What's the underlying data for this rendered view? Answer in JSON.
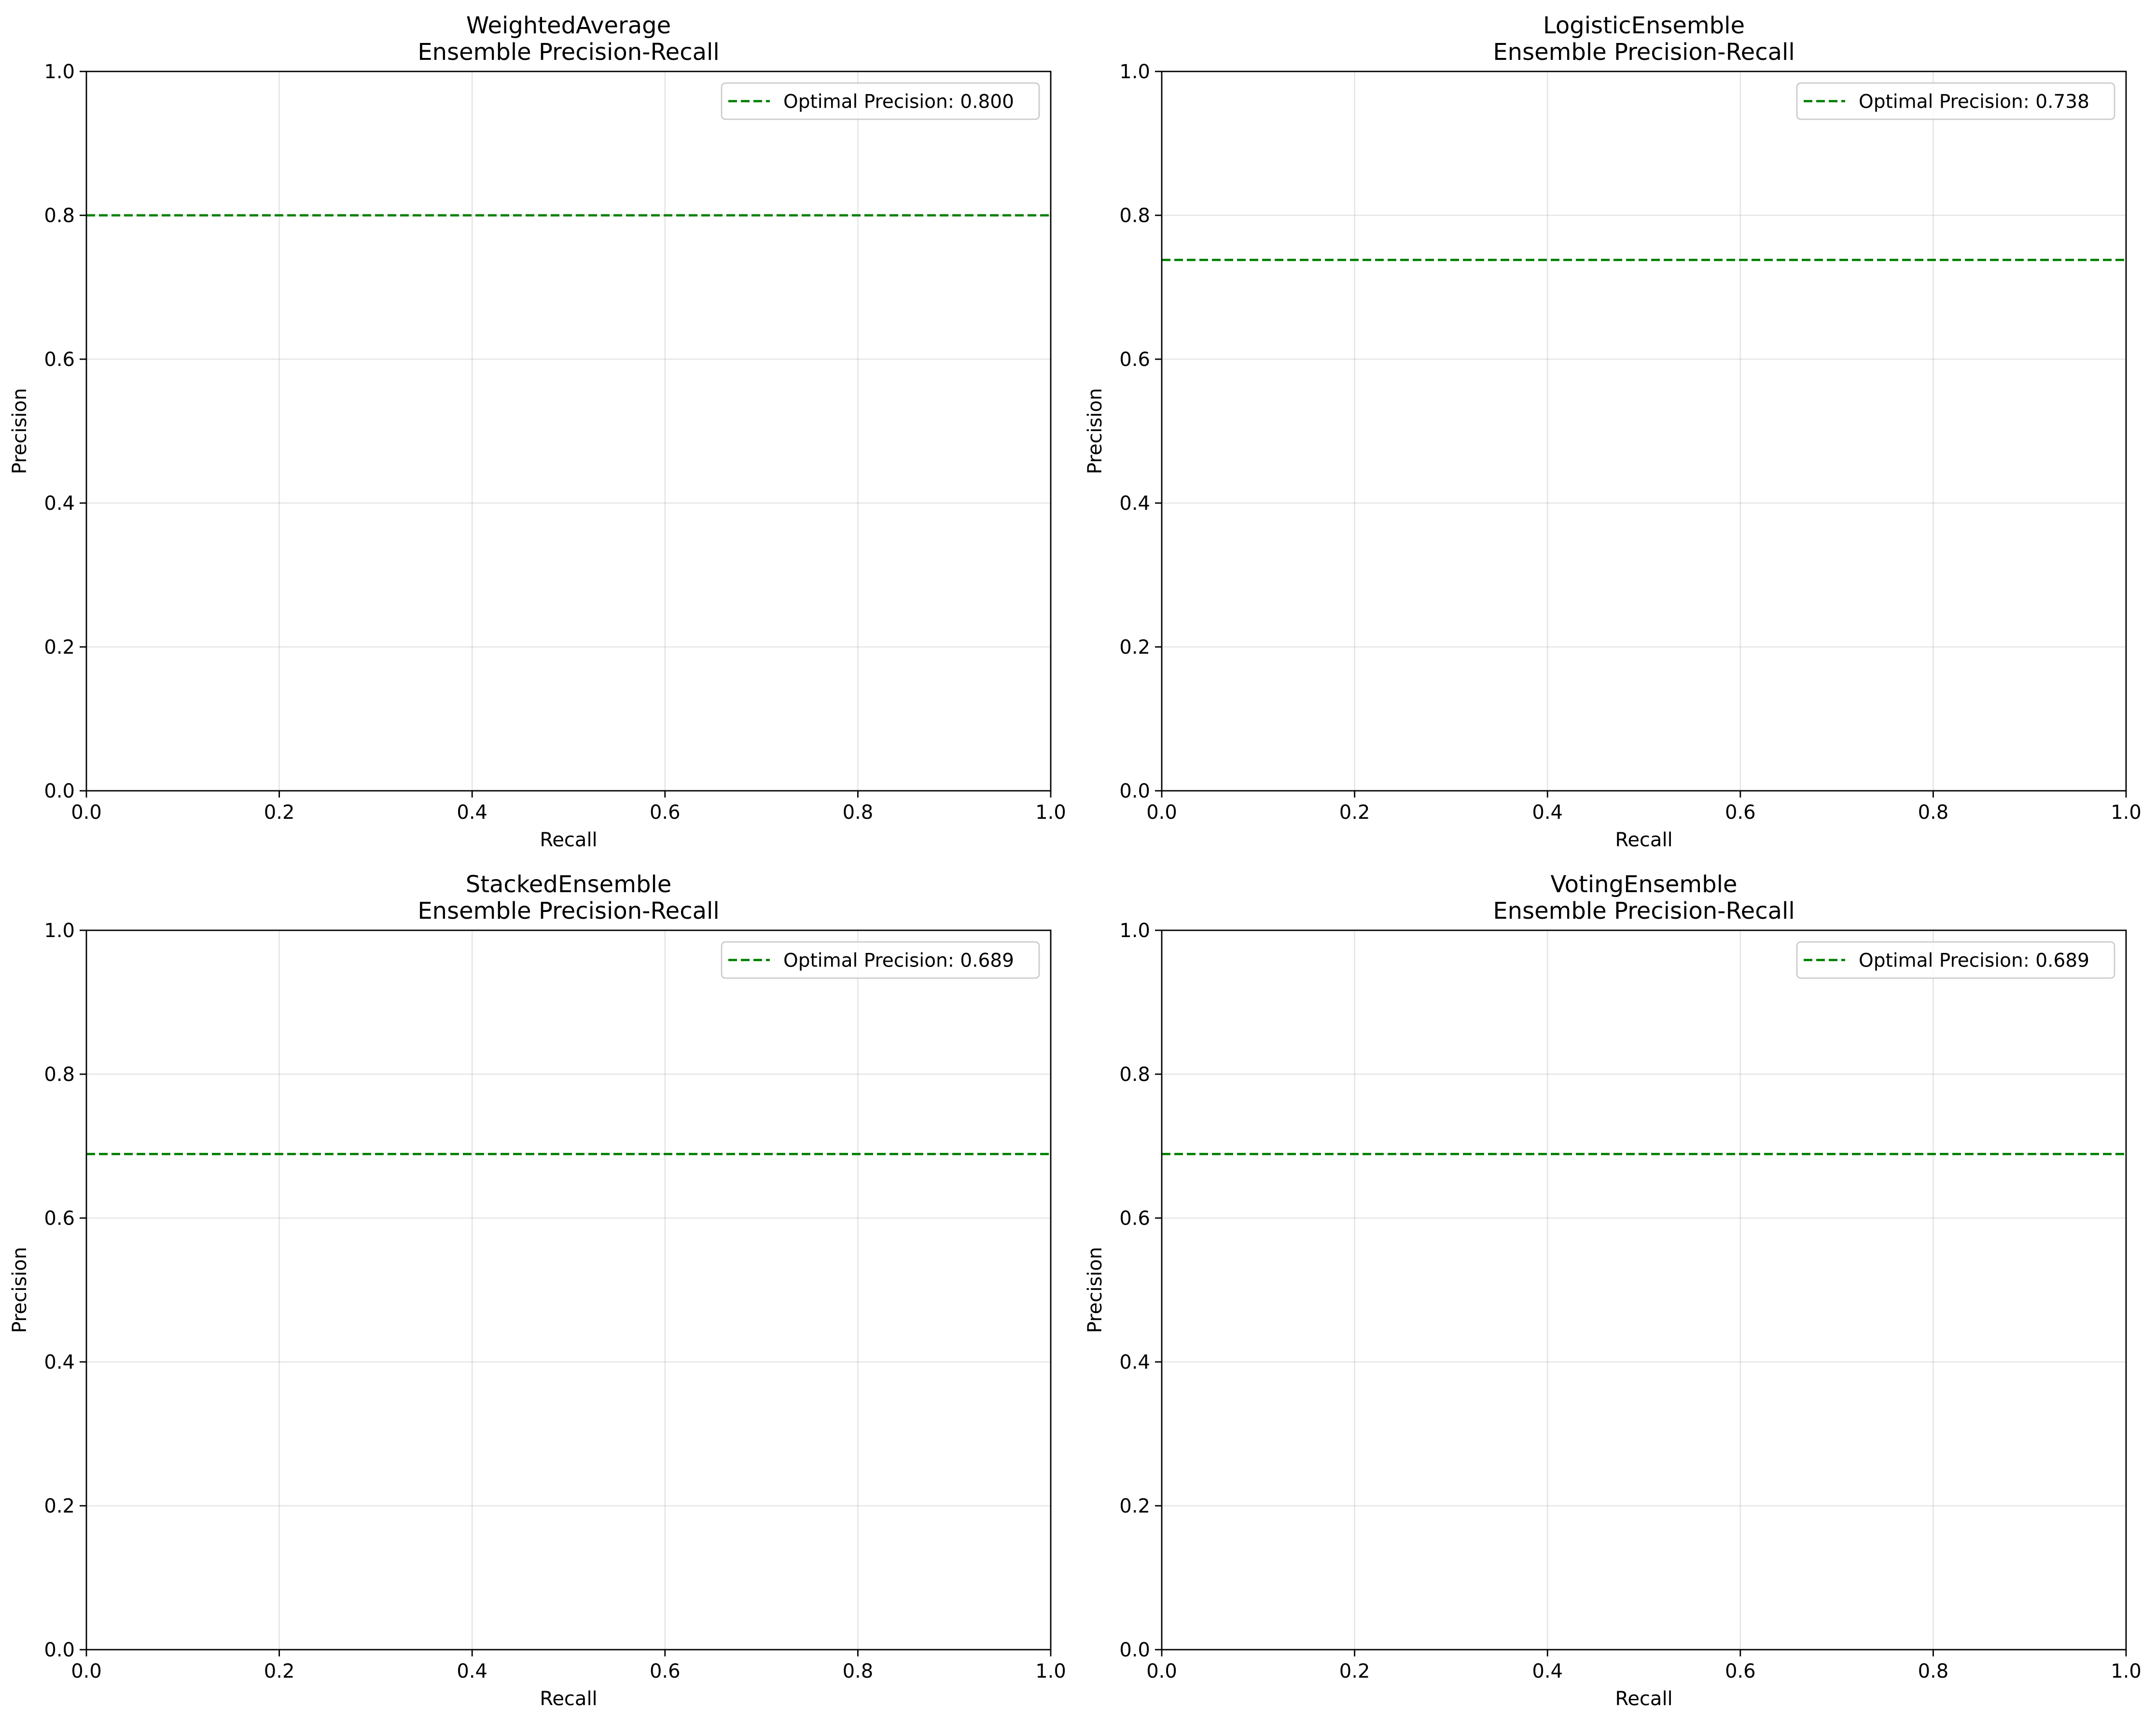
{
  "chart_data": [
    {
      "type": "line",
      "title": [
        "WeightedAverage",
        "Ensemble Precision-Recall"
      ],
      "xlabel": "Recall",
      "ylabel": "Precision",
      "xlim": [
        0.0,
        1.0
      ],
      "ylim": [
        0.0,
        1.0
      ],
      "x_ticks": [
        "0.0",
        "0.2",
        "0.4",
        "0.6",
        "0.8",
        "1.0"
      ],
      "y_ticks": [
        "0.0",
        "0.2",
        "0.4",
        "0.6",
        "0.8",
        "1.0"
      ],
      "grid": true,
      "legend_position": "top-right",
      "series": [
        {
          "name": "Optimal Precision: 0.800",
          "style": "dashed",
          "color": "#008000",
          "x": [
            0.0,
            1.0
          ],
          "y": [
            0.8,
            0.8
          ]
        }
      ]
    },
    {
      "type": "line",
      "title": [
        "LogisticEnsemble",
        "Ensemble Precision-Recall"
      ],
      "xlabel": "Recall",
      "ylabel": "Precision",
      "xlim": [
        0.0,
        1.0
      ],
      "ylim": [
        0.0,
        1.0
      ],
      "x_ticks": [
        "0.0",
        "0.2",
        "0.4",
        "0.6",
        "0.8",
        "1.0"
      ],
      "y_ticks": [
        "0.0",
        "0.2",
        "0.4",
        "0.6",
        "0.8",
        "1.0"
      ],
      "grid": true,
      "legend_position": "top-right",
      "series": [
        {
          "name": "Optimal Precision: 0.738",
          "style": "dashed",
          "color": "#008000",
          "x": [
            0.0,
            1.0
          ],
          "y": [
            0.738,
            0.738
          ]
        }
      ]
    },
    {
      "type": "line",
      "title": [
        "StackedEnsemble",
        "Ensemble Precision-Recall"
      ],
      "xlabel": "Recall",
      "ylabel": "Precision",
      "xlim": [
        0.0,
        1.0
      ],
      "ylim": [
        0.0,
        1.0
      ],
      "x_ticks": [
        "0.0",
        "0.2",
        "0.4",
        "0.6",
        "0.8",
        "1.0"
      ],
      "y_ticks": [
        "0.0",
        "0.2",
        "0.4",
        "0.6",
        "0.8",
        "1.0"
      ],
      "grid": true,
      "legend_position": "top-right",
      "series": [
        {
          "name": "Optimal Precision: 0.689",
          "style": "dashed",
          "color": "#008000",
          "x": [
            0.0,
            1.0
          ],
          "y": [
            0.689,
            0.689
          ]
        }
      ]
    },
    {
      "type": "line",
      "title": [
        "VotingEnsemble",
        "Ensemble Precision-Recall"
      ],
      "xlabel": "Recall",
      "ylabel": "Precision",
      "xlim": [
        0.0,
        1.0
      ],
      "ylim": [
        0.0,
        1.0
      ],
      "x_ticks": [
        "0.0",
        "0.2",
        "0.4",
        "0.6",
        "0.8",
        "1.0"
      ],
      "y_ticks": [
        "0.0",
        "0.2",
        "0.4",
        "0.6",
        "0.8",
        "1.0"
      ],
      "grid": true,
      "legend_position": "top-right",
      "series": [
        {
          "name": "Optimal Precision: 0.689",
          "style": "dashed",
          "color": "#008000",
          "x": [
            0.0,
            1.0
          ],
          "y": [
            0.689,
            0.689
          ]
        }
      ]
    }
  ]
}
